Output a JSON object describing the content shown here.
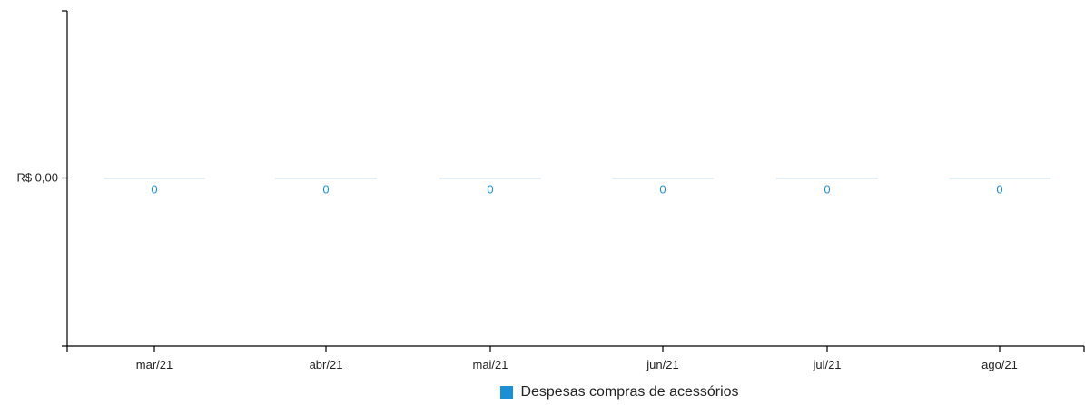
{
  "chart_data": {
    "type": "bar",
    "categories": [
      "mar/21",
      "abr/21",
      "mai/21",
      "jun/21",
      "jul/21",
      "ago/21"
    ],
    "series": [
      {
        "name": "Despesas compras de acessórios",
        "values": [
          0,
          0,
          0,
          0,
          0,
          0
        ]
      }
    ],
    "data_labels": [
      "0",
      "0",
      "0",
      "0",
      "0",
      "0"
    ],
    "y_ticks": [
      0
    ],
    "y_tick_labels": [
      "R$ 0,00"
    ],
    "ylim": [
      -1,
      1
    ],
    "grid": false,
    "legend_position": "bottom",
    "colors": {
      "series": "#1a8fd8",
      "axis": "#000000",
      "bar_line": "#c8e0ee"
    }
  }
}
